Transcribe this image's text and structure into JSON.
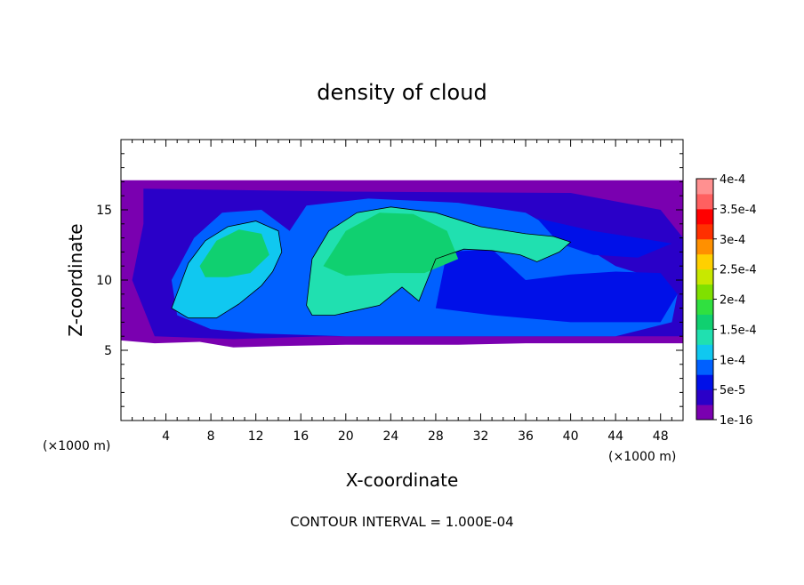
{
  "chart_data": {
    "type": "heatmap",
    "title": "density of cloud",
    "xlabel": "X-coordinate",
    "ylabel": "Z-coordinate",
    "x_unit_left": "(×1000 m)",
    "x_unit_right": "(×1000 m)",
    "footer": "CONTOUR INTERVAL = 1.000E-04",
    "xlim": [
      0,
      50
    ],
    "ylim": [
      0,
      20
    ],
    "x_ticks": [
      4,
      8,
      12,
      16,
      20,
      24,
      28,
      32,
      36,
      40,
      44,
      48
    ],
    "x_tick_labels": [
      "4",
      "8",
      "12",
      "16",
      "20",
      "24",
      "28",
      "32",
      "36",
      "40",
      "44",
      "48"
    ],
    "y_ticks": [
      5,
      10,
      15
    ],
    "y_tick_labels": [
      "5",
      "10",
      "15"
    ],
    "colorbar": {
      "labels": [
        "1e-16",
        "5e-5",
        "1e-4",
        "1.5e-4",
        "2e-4",
        "2.5e-4",
        "3e-4",
        "3.5e-4",
        "4e-4"
      ],
      "values": [
        1e-16,
        5e-05,
        0.0001,
        0.00015,
        0.0002,
        0.00025,
        0.0003,
        0.00035,
        0.0004
      ],
      "colors": [
        "#7a00b0",
        "#2a00c8",
        "#0010e8",
        "#0060ff",
        "#10c8f0",
        "#20e0b0",
        "#10d070",
        "#30e040",
        "#80e000",
        "#c8e800",
        "#ffd000",
        "#ff9000",
        "#ff3000",
        "#ff0000",
        "#ff6060",
        "#ff9090"
      ]
    },
    "contour_level": 0.0001,
    "regions": {
      "base_layer": {
        "value": 1e-16,
        "points": [
          [
            0,
            17.1
          ],
          [
            50,
            17.1
          ],
          [
            50,
            5.5
          ],
          [
            36,
            5.5
          ],
          [
            30,
            5.4
          ],
          [
            20,
            5.4
          ],
          [
            14,
            5.3
          ],
          [
            10,
            5.2
          ],
          [
            7,
            5.6
          ],
          [
            3,
            5.5
          ],
          [
            0,
            5.7
          ]
        ]
      },
      "low_haze": {
        "value": 5e-05,
        "points": [
          [
            2,
            16.5
          ],
          [
            20,
            16.3
          ],
          [
            40,
            16.2
          ],
          [
            48,
            15
          ],
          [
            50,
            13
          ],
          [
            50,
            6
          ],
          [
            34,
            6
          ],
          [
            18,
            6
          ],
          [
            10,
            5.8
          ],
          [
            3,
            6
          ],
          [
            1,
            10
          ],
          [
            2,
            14
          ]
        ]
      },
      "cloud_envelope": {
        "value": 8e-05,
        "points": [
          [
            4.5,
            10
          ],
          [
            6.5,
            13
          ],
          [
            9,
            14.8
          ],
          [
            12.5,
            15
          ],
          [
            15,
            13.5
          ],
          [
            16.5,
            15.3
          ],
          [
            22,
            15.8
          ],
          [
            30,
            15.5
          ],
          [
            36,
            14.8
          ],
          [
            41,
            12.5
          ],
          [
            44,
            11
          ],
          [
            48,
            10
          ],
          [
            49.5,
            9
          ],
          [
            49,
            7
          ],
          [
            44,
            6
          ],
          [
            30,
            6
          ],
          [
            20,
            6
          ],
          [
            12,
            6.2
          ],
          [
            8,
            6.5
          ],
          [
            5,
            7.5
          ]
        ]
      },
      "lower_cells": {
        "value": 6e-05,
        "points": [
          [
            29,
            12
          ],
          [
            33,
            12.2
          ],
          [
            36,
            10
          ],
          [
            40,
            10.4
          ],
          [
            44,
            10.6
          ],
          [
            48,
            10.5
          ],
          [
            49.5,
            9
          ],
          [
            48,
            7
          ],
          [
            40,
            7
          ],
          [
            33,
            7.5
          ],
          [
            28,
            8
          ]
        ]
      },
      "anvil_spread": {
        "value": 7e-05,
        "points": [
          [
            37,
            14.4
          ],
          [
            42,
            13.5
          ],
          [
            46,
            13
          ],
          [
            49,
            12.6
          ],
          [
            46,
            11.6
          ],
          [
            42,
            11.8
          ],
          [
            39,
            12.6
          ]
        ]
      },
      "left_core": {
        "value": 0.00012,
        "points": [
          [
            4.5,
            8
          ],
          [
            6,
            11.2
          ],
          [
            7.5,
            12.8
          ],
          [
            9.5,
            13.8
          ],
          [
            12,
            14.2
          ],
          [
            14,
            13.5
          ],
          [
            14.3,
            12
          ],
          [
            13.5,
            10.6
          ],
          [
            12.5,
            9.6
          ],
          [
            10.5,
            8.3
          ],
          [
            8.5,
            7.3
          ],
          [
            6,
            7.3
          ]
        ]
      },
      "left_core_top": {
        "value": 0.00016,
        "points": [
          [
            7,
            11
          ],
          [
            8.5,
            12.8
          ],
          [
            10.5,
            13.6
          ],
          [
            12.5,
            13.3
          ],
          [
            13.2,
            11.8
          ],
          [
            11.5,
            10.5
          ],
          [
            9.5,
            10.2
          ],
          [
            7.5,
            10.2
          ]
        ]
      },
      "main_core": {
        "value": 0.00013,
        "points": [
          [
            16.5,
            8.2
          ],
          [
            17,
            11.5
          ],
          [
            18.5,
            13.5
          ],
          [
            21,
            14.8
          ],
          [
            24,
            15.2
          ],
          [
            28,
            14.8
          ],
          [
            32,
            13.8
          ],
          [
            36,
            13.3
          ],
          [
            38.5,
            13.1
          ],
          [
            40,
            12.7
          ],
          [
            39,
            12
          ],
          [
            37,
            11.3
          ],
          [
            35.5,
            11.8
          ],
          [
            33,
            12.1
          ],
          [
            30.5,
            12.2
          ],
          [
            28,
            11.5
          ],
          [
            27,
            9.5
          ],
          [
            26.5,
            8.5
          ],
          [
            25,
            9.5
          ],
          [
            23,
            8.2
          ],
          [
            19,
            7.5
          ],
          [
            17,
            7.5
          ]
        ]
      },
      "main_core_top": {
        "value": 0.00017,
        "points": [
          [
            18,
            11
          ],
          [
            20,
            13.5
          ],
          [
            23,
            14.8
          ],
          [
            26,
            14.7
          ],
          [
            29,
            13.5
          ],
          [
            30,
            11.5
          ],
          [
            27,
            10.5
          ],
          [
            24,
            10.5
          ],
          [
            20,
            10.3
          ]
        ]
      }
    }
  }
}
